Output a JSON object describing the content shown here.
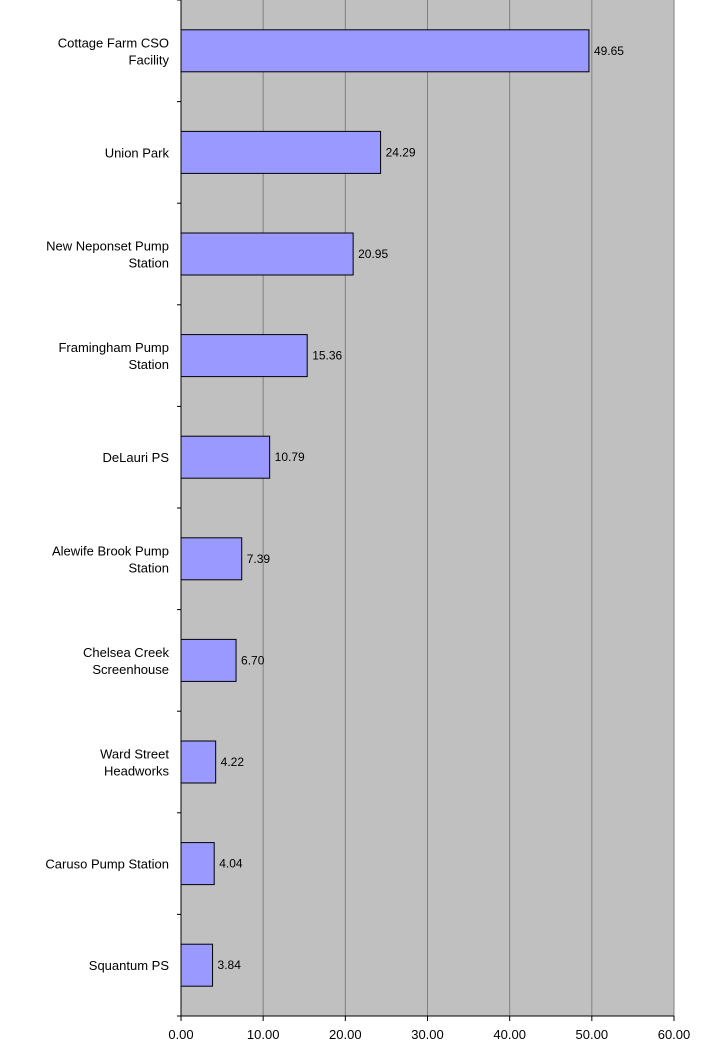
{
  "chart_data": {
    "type": "bar",
    "orientation": "horizontal",
    "categories": [
      [
        "Cottage Farm CSO",
        "Facility"
      ],
      [
        "Union Park"
      ],
      [
        "New Neponset Pump",
        "Station"
      ],
      [
        "Framingham Pump",
        "Station"
      ],
      [
        "DeLauri PS"
      ],
      [
        "Alewife Brook Pump",
        "Station"
      ],
      [
        "Chelsea Creek",
        "Screenhouse"
      ],
      [
        "Ward Street",
        "Headworks"
      ],
      [
        "Caruso Pump Station"
      ],
      [
        "Squantum PS"
      ]
    ],
    "values": [
      49.65,
      24.29,
      20.95,
      15.36,
      10.79,
      7.39,
      6.7,
      4.22,
      4.04,
      3.84
    ],
    "value_labels": [
      "49.65",
      "24.29",
      "20.95",
      "15.36",
      "10.79",
      "7.39",
      "6.70",
      "4.22",
      "4.04",
      "3.84"
    ],
    "xlim": [
      0,
      60
    ],
    "x_ticks": [
      "0.00",
      "10.00",
      "20.00",
      "30.00",
      "40.00",
      "50.00",
      "60.00"
    ],
    "grid": "vertical",
    "legend": "none",
    "colors": {
      "bar_fill": "#9999ff",
      "bar_stroke": "#000000",
      "plot_bg": "#c0c0c0",
      "grid": "#808080"
    }
  }
}
